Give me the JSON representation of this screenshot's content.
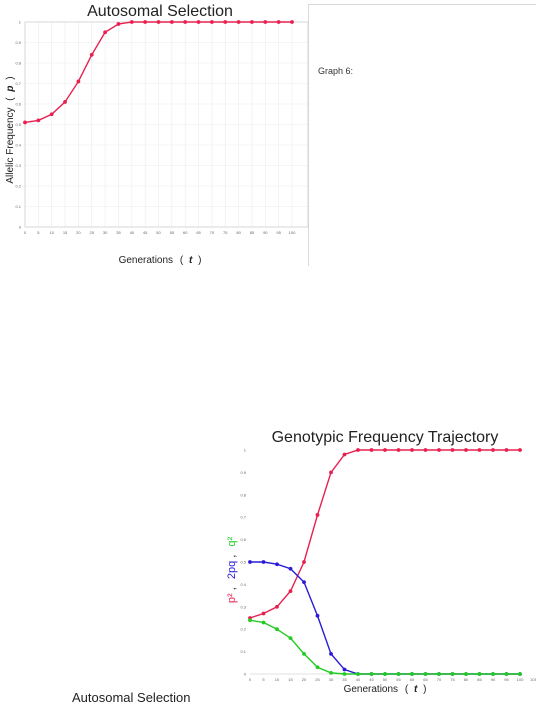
{
  "graph_caption": "Graph 6:",
  "bottom_crop_text": "Autosomal Selection",
  "chart_data": [
    {
      "type": "scatter",
      "title": "Autosomal Selection",
      "xlabel_parts": [
        "Generations",
        "(",
        "t",
        ")"
      ],
      "ylabel_parts": [
        "Allelic Frequency",
        "(",
        "p",
        ")"
      ],
      "xlim": [
        0,
        100
      ],
      "ylim": [
        0,
        1
      ],
      "xticks": [
        0,
        5,
        10,
        15,
        20,
        25,
        30,
        35,
        40,
        45,
        50,
        55,
        60,
        65,
        70,
        75,
        80,
        85,
        90,
        95,
        100
      ],
      "yticks": [
        0,
        0.1,
        0.2,
        0.3,
        0.4,
        0.5,
        0.6,
        0.7,
        0.8,
        0.9,
        1
      ],
      "grid": true,
      "series": [
        {
          "color": "#e8204f",
          "x": [
            0,
            5,
            10,
            15,
            20,
            25,
            30,
            35,
            40,
            45,
            50,
            55,
            60,
            65,
            70,
            75,
            80,
            85,
            90,
            95,
            100
          ],
          "y": [
            0.51,
            0.52,
            0.55,
            0.61,
            0.71,
            0.84,
            0.95,
            0.99,
            1.0,
            1.0,
            1.0,
            1.0,
            1.0,
            1.0,
            1.0,
            1.0,
            1.0,
            1.0,
            1.0,
            1.0,
            1.0
          ]
        }
      ]
    },
    {
      "type": "scatter",
      "title": "Genotypic Frequency Trajectory",
      "xlabel_parts": [
        "Generations",
        "(",
        "t",
        ")"
      ],
      "ylabel_parts": [
        {
          "text": "p²",
          "color": "#e8204f"
        },
        {
          "text": ",",
          "color": "#222222"
        },
        {
          "text": "2pq",
          "color": "#2a1bd6"
        },
        {
          "text": ",",
          "color": "#222222"
        },
        {
          "text": "q²",
          "color": "#22cc22"
        }
      ],
      "xlim": [
        0,
        100
      ],
      "ylim": [
        0,
        1
      ],
      "xticks": [
        0,
        5,
        10,
        15,
        20,
        25,
        30,
        35,
        40,
        45,
        50,
        55,
        60,
        65,
        70,
        75,
        80,
        85,
        90,
        95,
        100,
        105
      ],
      "yticks": [
        0,
        0.1,
        0.2,
        0.3,
        0.4,
        0.5,
        0.6,
        0.7,
        0.8,
        0.9,
        1
      ],
      "grid": false,
      "series": [
        {
          "color": "#e8204f",
          "x": [
            0,
            5,
            10,
            15,
            20,
            25,
            30,
            35,
            40,
            45,
            50,
            55,
            60,
            65,
            70,
            75,
            80,
            85,
            90,
            95,
            100
          ],
          "y": [
            0.25,
            0.27,
            0.3,
            0.37,
            0.5,
            0.71,
            0.9,
            0.98,
            1.0,
            1.0,
            1.0,
            1.0,
            1.0,
            1.0,
            1.0,
            1.0,
            1.0,
            1.0,
            1.0,
            1.0,
            1.0
          ]
        },
        {
          "color": "#2a1bd6",
          "x": [
            0,
            5,
            10,
            15,
            20,
            25,
            30,
            35,
            40,
            45,
            50,
            55,
            60,
            65,
            70,
            75,
            80,
            85,
            90,
            95,
            100
          ],
          "y": [
            0.5,
            0.5,
            0.49,
            0.47,
            0.41,
            0.26,
            0.09,
            0.02,
            0.0,
            0.0,
            0.0,
            0.0,
            0.0,
            0.0,
            0.0,
            0.0,
            0.0,
            0.0,
            0.0,
            0.0,
            0.0
          ]
        },
        {
          "color": "#22cc22",
          "x": [
            0,
            5,
            10,
            15,
            20,
            25,
            30,
            35,
            40,
            45,
            50,
            55,
            60,
            65,
            70,
            75,
            80,
            85,
            90,
            95,
            100
          ],
          "y": [
            0.24,
            0.23,
            0.2,
            0.16,
            0.09,
            0.03,
            0.005,
            0.0,
            0.0,
            0.0,
            0.0,
            0.0,
            0.0,
            0.0,
            0.0,
            0.0,
            0.0,
            0.0,
            0.0,
            0.0,
            0.0
          ]
        }
      ]
    }
  ]
}
